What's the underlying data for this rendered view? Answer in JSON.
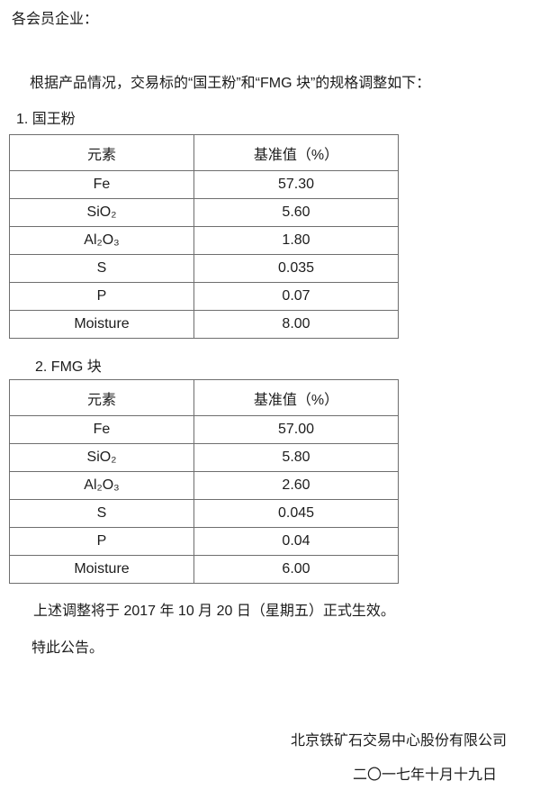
{
  "page": {
    "salutation": "各会员企业：",
    "intro": "根据产品情况，交易标的“国王粉”和“FMG 块”的规格调整如下：",
    "effective_note": "上述调整将于 2017 年 10 月 20 日（星期五）正式生效。",
    "closing": "特此公告。",
    "issuer": "北京铁矿石交易中心股份有限公司",
    "issue_date": "二〇一七年十月十九日"
  },
  "tables": [
    {
      "heading": "1. 国王粉",
      "columns": [
        "元素",
        "基准值（%）"
      ],
      "rows": [
        [
          "Fe",
          "57.30"
        ],
        [
          "SiO₂",
          "5.60"
        ],
        [
          "Al₂O₃",
          "1.80"
        ],
        [
          "S",
          "0.035"
        ],
        [
          "P",
          "0.07"
        ],
        [
          "Moisture",
          "8.00"
        ]
      ]
    },
    {
      "heading": "2. FMG 块",
      "columns": [
        "元素",
        "基准值（%）"
      ],
      "rows": [
        [
          "Fe",
          "57.00"
        ],
        [
          "SiO₂",
          "5.80"
        ],
        [
          "Al₂O₃",
          "2.60"
        ],
        [
          "S",
          "0.045"
        ],
        [
          "P",
          "0.04"
        ],
        [
          "Moisture",
          "6.00"
        ]
      ]
    }
  ],
  "colors": {
    "background": "#ffffff",
    "text": "#1c1c1c",
    "table_border": "#6e6e6e"
  }
}
